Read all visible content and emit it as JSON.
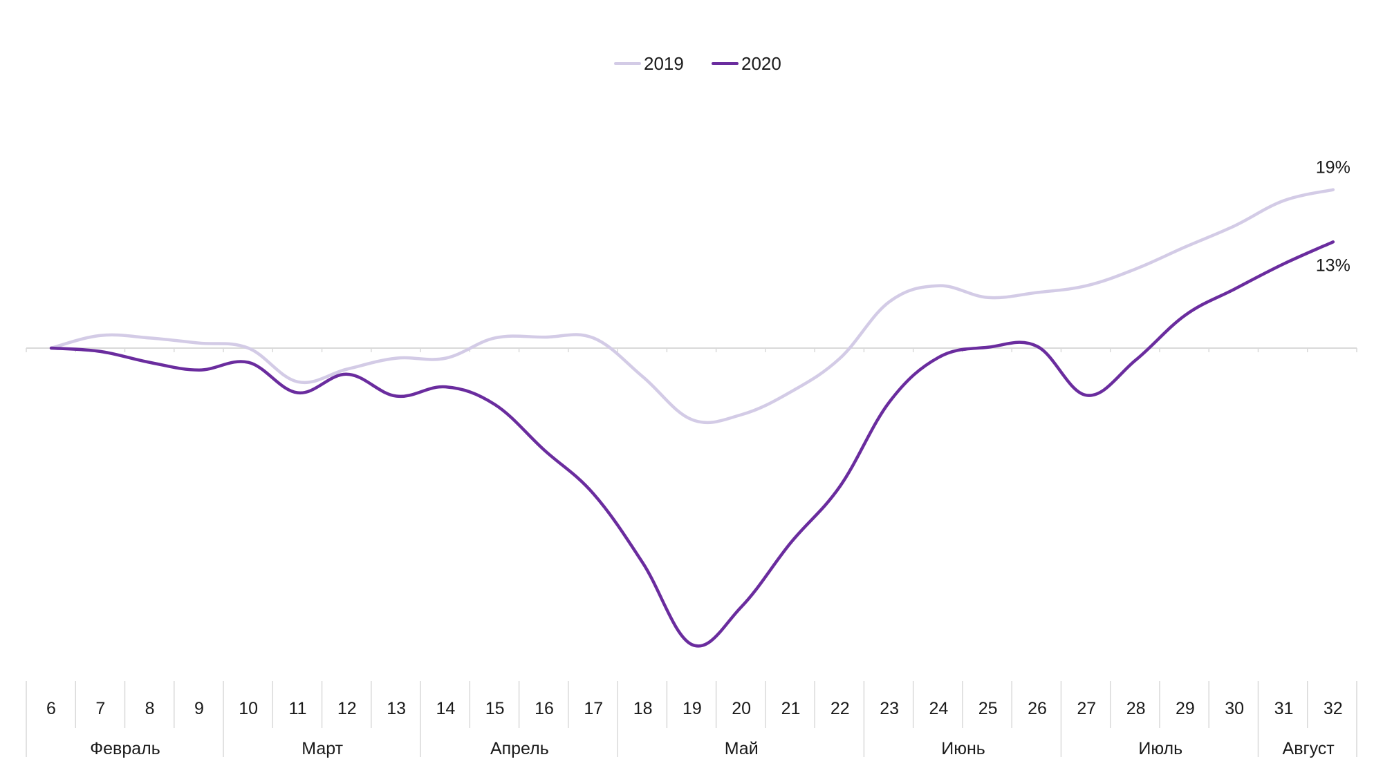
{
  "chart_data": {
    "type": "line",
    "title": "",
    "xlabel": "",
    "ylabel": "",
    "x": [
      6,
      7,
      8,
      9,
      10,
      11,
      12,
      13,
      14,
      15,
      16,
      17,
      18,
      19,
      20,
      21,
      22,
      23,
      24,
      25,
      26,
      27,
      28,
      29,
      30,
      31,
      32
    ],
    "x_tick_labels": [
      "6",
      "7",
      "8",
      "9",
      "10",
      "11",
      "12",
      "13",
      "14",
      "15",
      "16",
      "17",
      "18",
      "19",
      "20",
      "21",
      "22",
      "23",
      "24",
      "25",
      "26",
      "27",
      "28",
      "29",
      "30",
      "31",
      "32"
    ],
    "months": [
      {
        "label": "Февраль",
        "from": 6,
        "to": 9
      },
      {
        "label": "Март",
        "from": 10,
        "to": 13
      },
      {
        "label": "Апрель",
        "from": 14,
        "to": 17
      },
      {
        "label": "Май",
        "from": 18,
        "to": 22
      },
      {
        "label": "Июнь",
        "from": 23,
        "to": 26
      },
      {
        "label": "Июль",
        "from": 27,
        "to": 30
      },
      {
        "label": "Август",
        "from": 31,
        "to": 32
      }
    ],
    "series": [
      {
        "name": "2019",
        "color": "#d3cbe6",
        "values": [
          0,
          1.5,
          1.2,
          0.6,
          0,
          -4,
          -2.5,
          -1.2,
          -1.2,
          1.2,
          1.3,
          1.2,
          -3.4,
          -8.5,
          -7.9,
          -5.2,
          -1.2,
          5.5,
          7.4,
          6.0,
          6.6,
          7.4,
          9.4,
          12.0,
          14.5,
          17.5,
          18.8
        ]
      },
      {
        "name": "2020",
        "color": "#6a2c9e",
        "values": [
          0,
          -0.4,
          -1.7,
          -2.6,
          -1.7,
          -5.3,
          -3.1,
          -5.7,
          -4.6,
          -6.7,
          -12.1,
          -17.3,
          -25.5,
          -35.2,
          -30.7,
          -23.1,
          -16.4,
          -6.4,
          -1.1,
          0.1,
          0.2,
          -5.6,
          -1.4,
          3.9,
          7.0,
          10.0,
          12.6
        ]
      }
    ],
    "end_labels": [
      {
        "series": "2019",
        "text": "19%"
      },
      {
        "series": "2020",
        "text": "13%"
      }
    ],
    "ylim": [
      -36,
      22
    ],
    "grid": false,
    "legend": "top-center"
  }
}
